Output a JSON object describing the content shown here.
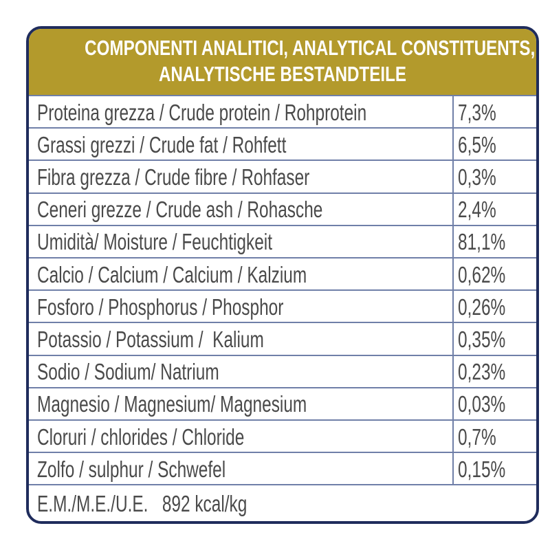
{
  "header": {
    "lines": [
      "COMPONENTI ANALITICI, ANALYTICAL CONSTITUENTS,",
      "ANALYTISCHE BESTANDTEILE"
    ]
  },
  "table": {
    "rows": [
      [
        "Proteina grezza / Crude protein / Rohprotein",
        "7,3%"
      ],
      [
        "Grassi grezzi / Crude fat / Rohfett",
        "6,5%"
      ],
      [
        "Fibra grezza / Crude fibre / Rohfaser",
        "0,3%"
      ],
      [
        "Ceneri grezze / Crude ash / Rohasche",
        "2,4%"
      ],
      [
        "Umidità/ Moisture / Feuchtigkeit",
        "81,1%"
      ],
      [
        "Calcio / Calcium / Calcium / Kalzium",
        "0,62%"
      ],
      [
        "Fosforo / Phosphorus / Phosphor",
        "0,26%"
      ],
      [
        "Potassio / Potassium /  Kalium",
        "0,35%"
      ],
      [
        "Sodio / Sodium/ Natrium",
        "0,23%"
      ],
      [
        "Magnesio / Magnesium/ Magnesium",
        "0,03%"
      ],
      [
        "Cloruri / chlorides / Chloride",
        "0,7%"
      ],
      [
        "Zolfo / sulphur / Schwefel",
        "0,15%"
      ]
    ]
  },
  "footer": "E.M./M.E./U.E.   892 kcal/kg"
}
